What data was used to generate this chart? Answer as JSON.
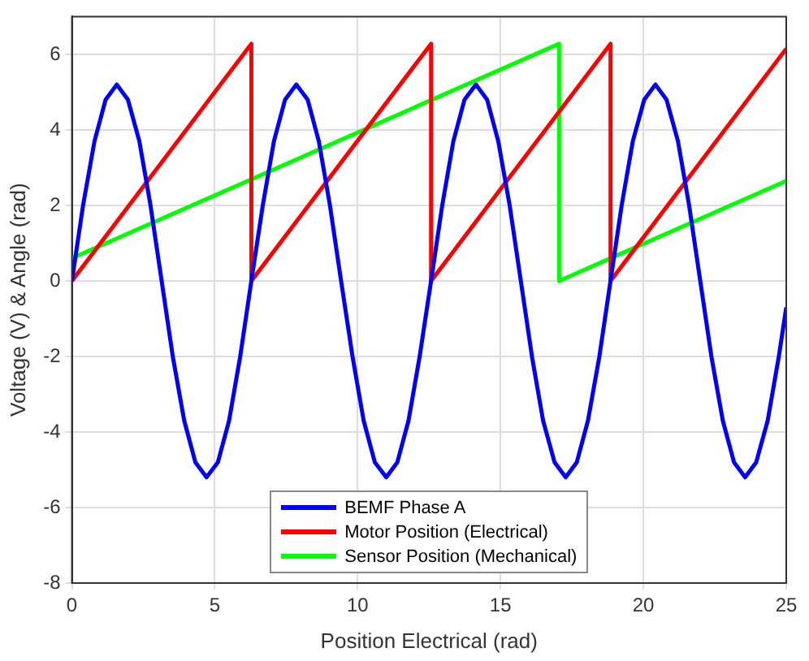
{
  "chart_data": {
    "type": "line",
    "xlabel": "Position Electrical (rad)",
    "ylabel": "Voltage (V) & Angle (rad)",
    "xlim": [
      0,
      25
    ],
    "xticks": [
      0,
      5,
      10,
      15,
      20,
      25
    ],
    "ylim": [
      -8,
      7
    ],
    "yticks": [
      -8,
      -6,
      -4,
      -2,
      0,
      2,
      4,
      6
    ],
    "grid": true,
    "legend": "bottom",
    "marker": "none",
    "line_style": "solid",
    "series": [
      {
        "name": "BEMF Phase A",
        "color": "#0000ff",
        "x": [
          0,
          0.39,
          0.79,
          1.18,
          1.57,
          1.96,
          2.36,
          2.75,
          3.14,
          3.53,
          3.93,
          4.32,
          4.71,
          5.11,
          5.5,
          5.89,
          6.28,
          6.68,
          7.07,
          7.46,
          7.85,
          8.25,
          8.64,
          9.03,
          9.42,
          9.82,
          10.21,
          10.6,
          11,
          11.39,
          11.78,
          12.17,
          12.57,
          12.96,
          13.35,
          13.74,
          14.14,
          14.53,
          14.92,
          15.32,
          15.71,
          16.1,
          16.49,
          16.89,
          17.28,
          17.67,
          18.06,
          18.46,
          18.85,
          19.24,
          19.63,
          20.03,
          20.42,
          20.81,
          21.21,
          21.6,
          21.99,
          22.38,
          22.78,
          23.17,
          23.56,
          23.95,
          24.35,
          24.74,
          25
        ],
        "values": [
          0,
          2,
          3.7,
          4.8,
          5.2,
          4.8,
          3.7,
          2,
          0,
          -2,
          -3.7,
          -4.8,
          -5.2,
          -4.8,
          -3.7,
          -2,
          0,
          2,
          3.7,
          4.8,
          5.2,
          4.8,
          3.7,
          2,
          0,
          -2,
          -3.7,
          -4.8,
          -5.2,
          -4.8,
          -3.7,
          -2,
          0,
          2,
          3.7,
          4.8,
          5.2,
          4.8,
          3.7,
          2,
          0,
          -2,
          -3.7,
          -4.8,
          -5.2,
          -4.8,
          -3.7,
          -2,
          0,
          2,
          3.7,
          4.8,
          5.2,
          4.8,
          3.7,
          2,
          0,
          -2,
          -3.7,
          -4.8,
          -5.2,
          -4.8,
          -3.7,
          -2,
          -0.7
        ]
      },
      {
        "name": "Motor Position (Electrical)",
        "color": "#ff0000",
        "x": [
          0,
          6.28,
          6.28,
          12.57,
          12.57,
          18.85,
          18.85,
          25
        ],
        "values": [
          0,
          6.28,
          0,
          6.28,
          0,
          6.28,
          0,
          6.15
        ]
      },
      {
        "name": "Sensor Position (Mechanical)",
        "color": "#00ff00",
        "x": [
          0,
          17.05,
          17.05,
          25
        ],
        "values": [
          0.6,
          6.28,
          0,
          2.65
        ]
      }
    ]
  }
}
